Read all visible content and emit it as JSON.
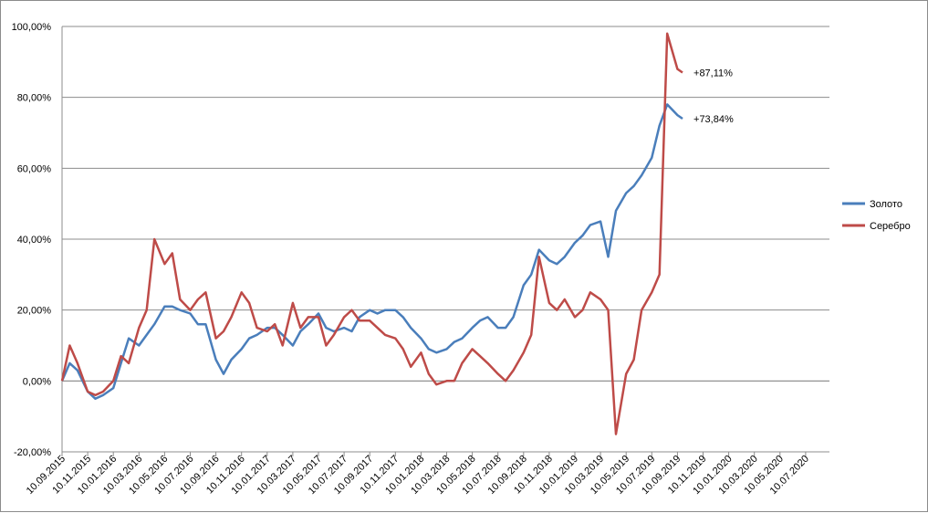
{
  "chart_data": {
    "type": "line",
    "title": "",
    "xlabel": "",
    "ylabel": "",
    "ylim": [
      -20,
      100
    ],
    "y_ticks": [
      -20,
      0,
      20,
      40,
      60,
      80,
      100
    ],
    "y_tick_labels": [
      "-20,00%",
      "0,00%",
      "20,00%",
      "40,00%",
      "60,00%",
      "80,00%",
      "100,00%"
    ],
    "x_tick_labels": [
      "10.09.2015",
      "10.11.2015",
      "10.01.2016",
      "10.03.2016",
      "10.05.2016",
      "10.07.2016",
      "10.09.2016",
      "10.11.2016",
      "10.01.2017",
      "10.03.2017",
      "10.05.2017",
      "10.07.2017",
      "10.09.2017",
      "10.11.2017",
      "10.01.2018",
      "10.03.2018",
      "10.05.2018",
      "10.07.2018",
      "10.09.2018",
      "10.11.2018",
      "10.01.2019",
      "10.03.2019",
      "10.05.2019",
      "10.07.2019",
      "10.09.2019",
      "10.11.2019",
      "10.01.2020",
      "10.03.2020",
      "10.05.2020",
      "10.07.2020"
    ],
    "grid": "horizontal",
    "legend_position": "right",
    "series": [
      {
        "name": "Золото",
        "color": "#4a7ebb",
        "end_label": "+73,84%",
        "values": [
          [
            0,
            0
          ],
          [
            0.3,
            5
          ],
          [
            0.6,
            3
          ],
          [
            1,
            -3
          ],
          [
            1.3,
            -5
          ],
          [
            1.6,
            -4
          ],
          [
            2,
            -2
          ],
          [
            2.3,
            5
          ],
          [
            2.6,
            12
          ],
          [
            3,
            10
          ],
          [
            3.3,
            13
          ],
          [
            3.6,
            16
          ],
          [
            4,
            21
          ],
          [
            4.3,
            21
          ],
          [
            4.6,
            20
          ],
          [
            5,
            19
          ],
          [
            5.3,
            16
          ],
          [
            5.6,
            16
          ],
          [
            6,
            6
          ],
          [
            6.3,
            2
          ],
          [
            6.6,
            6
          ],
          [
            7,
            9
          ],
          [
            7.3,
            12
          ],
          [
            7.6,
            13
          ],
          [
            8,
            15
          ],
          [
            8.3,
            15
          ],
          [
            8.6,
            13
          ],
          [
            9,
            10
          ],
          [
            9.3,
            14
          ],
          [
            9.6,
            16
          ],
          [
            10,
            19
          ],
          [
            10.3,
            15
          ],
          [
            10.6,
            14
          ],
          [
            11,
            15
          ],
          [
            11.3,
            14
          ],
          [
            11.6,
            18
          ],
          [
            12,
            20
          ],
          [
            12.3,
            19
          ],
          [
            12.6,
            20
          ],
          [
            13,
            20
          ],
          [
            13.3,
            18
          ],
          [
            13.6,
            15
          ],
          [
            14,
            12
          ],
          [
            14.3,
            9
          ],
          [
            14.6,
            8
          ],
          [
            15,
            9
          ],
          [
            15.3,
            11
          ],
          [
            15.6,
            12
          ],
          [
            16,
            15
          ],
          [
            16.3,
            17
          ],
          [
            16.6,
            18
          ],
          [
            17,
            15
          ],
          [
            17.3,
            15
          ],
          [
            17.6,
            18
          ],
          [
            18,
            27
          ],
          [
            18.3,
            30
          ],
          [
            18.6,
            37
          ],
          [
            19,
            34
          ],
          [
            19.3,
            33
          ],
          [
            19.6,
            35
          ],
          [
            20,
            39
          ],
          [
            20.3,
            41
          ],
          [
            20.6,
            44
          ],
          [
            21,
            45
          ],
          [
            21.3,
            35
          ],
          [
            21.6,
            48
          ],
          [
            22,
            53
          ],
          [
            22.3,
            55
          ],
          [
            22.6,
            58
          ],
          [
            23,
            63
          ],
          [
            23.3,
            72
          ],
          [
            23.6,
            78
          ],
          [
            24,
            75
          ],
          [
            24.2,
            74
          ]
        ]
      },
      {
        "name": "Серебро",
        "color": "#be4b48",
        "end_label": "+87,11%",
        "values": [
          [
            0,
            0
          ],
          [
            0.3,
            10
          ],
          [
            0.6,
            5
          ],
          [
            1,
            -3
          ],
          [
            1.3,
            -4
          ],
          [
            1.6,
            -3
          ],
          [
            2,
            0
          ],
          [
            2.3,
            7
          ],
          [
            2.6,
            5
          ],
          [
            3,
            15
          ],
          [
            3.3,
            20
          ],
          [
            3.6,
            40
          ],
          [
            4,
            33
          ],
          [
            4.3,
            36
          ],
          [
            4.6,
            23
          ],
          [
            5,
            20
          ],
          [
            5.3,
            23
          ],
          [
            5.6,
            25
          ],
          [
            6,
            12
          ],
          [
            6.3,
            14
          ],
          [
            6.6,
            18
          ],
          [
            7,
            25
          ],
          [
            7.3,
            22
          ],
          [
            7.6,
            15
          ],
          [
            8,
            14
          ],
          [
            8.3,
            16
          ],
          [
            8.6,
            10
          ],
          [
            9,
            22
          ],
          [
            9.3,
            15
          ],
          [
            9.6,
            18
          ],
          [
            10,
            18
          ],
          [
            10.3,
            10
          ],
          [
            10.6,
            13
          ],
          [
            11,
            18
          ],
          [
            11.3,
            20
          ],
          [
            11.6,
            17
          ],
          [
            12,
            17
          ],
          [
            12.3,
            15
          ],
          [
            12.6,
            13
          ],
          [
            13,
            12
          ],
          [
            13.3,
            9
          ],
          [
            13.6,
            4
          ],
          [
            14,
            8
          ],
          [
            14.3,
            2
          ],
          [
            14.6,
            -1
          ],
          [
            15,
            0
          ],
          [
            15.3,
            0
          ],
          [
            15.6,
            5
          ],
          [
            16,
            9
          ],
          [
            16.3,
            7
          ],
          [
            16.6,
            5
          ],
          [
            17,
            2
          ],
          [
            17.3,
            0
          ],
          [
            17.6,
            3
          ],
          [
            18,
            8
          ],
          [
            18.3,
            13
          ],
          [
            18.6,
            35
          ],
          [
            19,
            22
          ],
          [
            19.3,
            20
          ],
          [
            19.6,
            23
          ],
          [
            20,
            18
          ],
          [
            20.3,
            20
          ],
          [
            20.6,
            25
          ],
          [
            21,
            23
          ],
          [
            21.3,
            20
          ],
          [
            21.6,
            -15
          ],
          [
            22,
            2
          ],
          [
            22.3,
            6
          ],
          [
            22.6,
            20
          ],
          [
            23,
            25
          ],
          [
            23.3,
            30
          ],
          [
            23.6,
            98
          ],
          [
            24,
            88
          ],
          [
            24.2,
            87
          ]
        ]
      }
    ]
  }
}
